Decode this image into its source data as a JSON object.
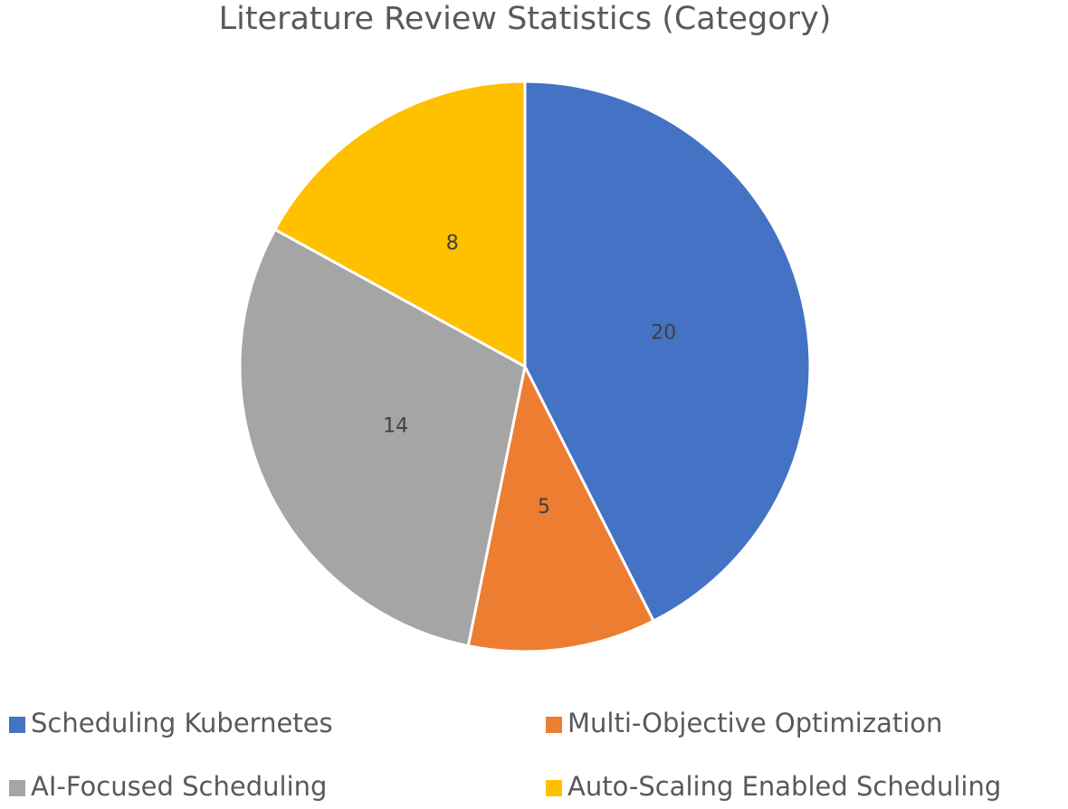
{
  "chart_data": {
    "type": "pie",
    "title": "Literature Review Statistics (Category)",
    "categories": [
      "Scheduling Kubernetes",
      "Multi-Objective Optimization",
      "AI-Focused Scheduling",
      "Auto-Scaling Enabled Scheduling"
    ],
    "values": [
      20,
      5,
      14,
      8
    ],
    "colors": [
      "#4472c4",
      "#ed7d31",
      "#a5a5a5",
      "#ffc000"
    ]
  }
}
